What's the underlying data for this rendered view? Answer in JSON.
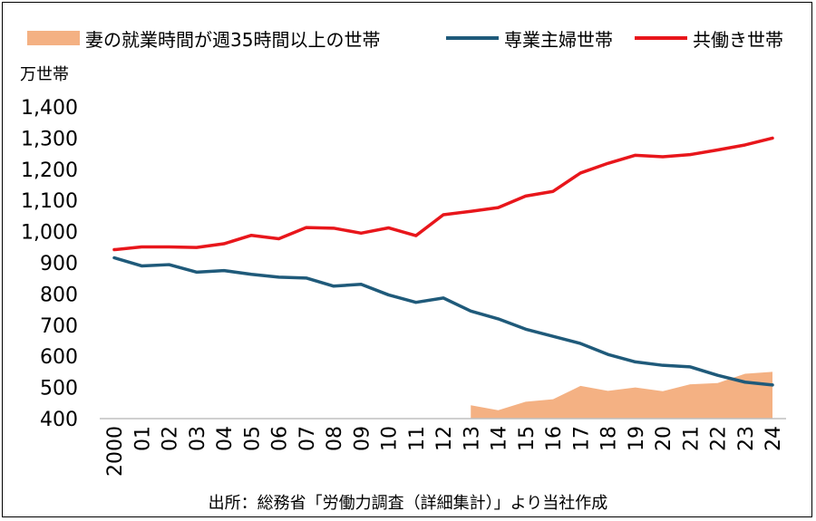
{
  "chart_data": {
    "type": "line",
    "unit_label": "万世帯",
    "x": [
      "2000",
      "01",
      "02",
      "03",
      "04",
      "05",
      "06",
      "07",
      "08",
      "09",
      "10",
      "11",
      "12",
      "13",
      "14",
      "15",
      "16",
      "17",
      "18",
      "19",
      "20",
      "21",
      "22",
      "23",
      "24"
    ],
    "ylim": [
      400,
      1400
    ],
    "yticks": [
      "400",
      "500",
      "600",
      "700",
      "800",
      "900",
      "1,000",
      "1,100",
      "1,200",
      "1,300",
      "1,400"
    ],
    "ytick_values": [
      400,
      500,
      600,
      700,
      800,
      900,
      1000,
      1100,
      1200,
      1300,
      1400
    ],
    "series": [
      {
        "name": "妻の就業時間が週35時間以上の世帯",
        "kind": "area",
        "color": "#f4b183",
        "values": [
          null,
          null,
          null,
          null,
          null,
          null,
          null,
          null,
          null,
          null,
          null,
          null,
          null,
          443,
          427,
          454,
          462,
          505,
          489,
          500,
          488,
          510,
          514,
          544,
          550
        ]
      },
      {
        "name": "専業主婦世帯",
        "kind": "line",
        "color": "#1f5a7a",
        "values": [
          916,
          890,
          894,
          870,
          875,
          863,
          854,
          851,
          825,
          831,
          797,
          773,
          787,
          745,
          720,
          687,
          664,
          641,
          606,
          582,
          571,
          566,
          539,
          517,
          508
        ]
      },
      {
        "name": "共働き世帯",
        "kind": "line",
        "color": "#e8161b",
        "values": [
          942,
          951,
          951,
          949,
          961,
          988,
          977,
          1013,
          1011,
          995,
          1012,
          987,
          1054,
          1065,
          1077,
          1114,
          1129,
          1188,
          1219,
          1245,
          1240,
          1247,
          1262,
          1278,
          1300
        ]
      }
    ],
    "legend_position": "top",
    "source": "出所：総務省「労働力調査（詳細集計）」より当社作成"
  }
}
